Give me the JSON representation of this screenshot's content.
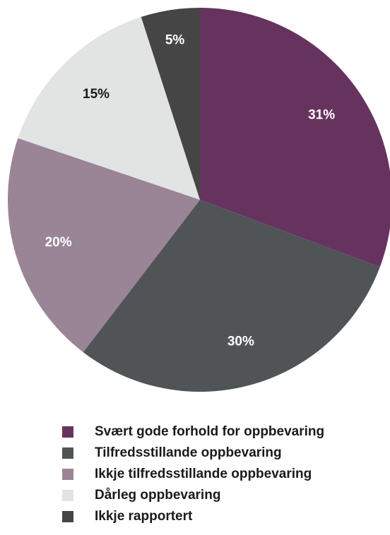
{
  "chart_data": {
    "type": "pie",
    "title": "",
    "slices": [
      {
        "label": "Svært gode forhold for oppbevaring",
        "value": 31,
        "display": "31%",
        "color": "#66335f",
        "text_color": "#ffffff"
      },
      {
        "label": "Tilfredsstillande oppbevaring",
        "value": 30,
        "display": "30%",
        "color": "#505457",
        "text_color": "#ffffff"
      },
      {
        "label": "Ikkje tilfredsstillande oppbevaring",
        "value": 20,
        "display": "20%",
        "color": "#9a8597",
        "text_color": "#ffffff"
      },
      {
        "label": "Dårleg oppbevaring",
        "value": 15,
        "display": "15%",
        "color": "#e2e3e3",
        "text_color": "#1a1a1a"
      },
      {
        "label": "Ikkje rapportert",
        "value": 5,
        "display": "5%",
        "color": "#454545",
        "text_color": "#ffffff"
      }
    ],
    "legend_position": "bottom"
  }
}
